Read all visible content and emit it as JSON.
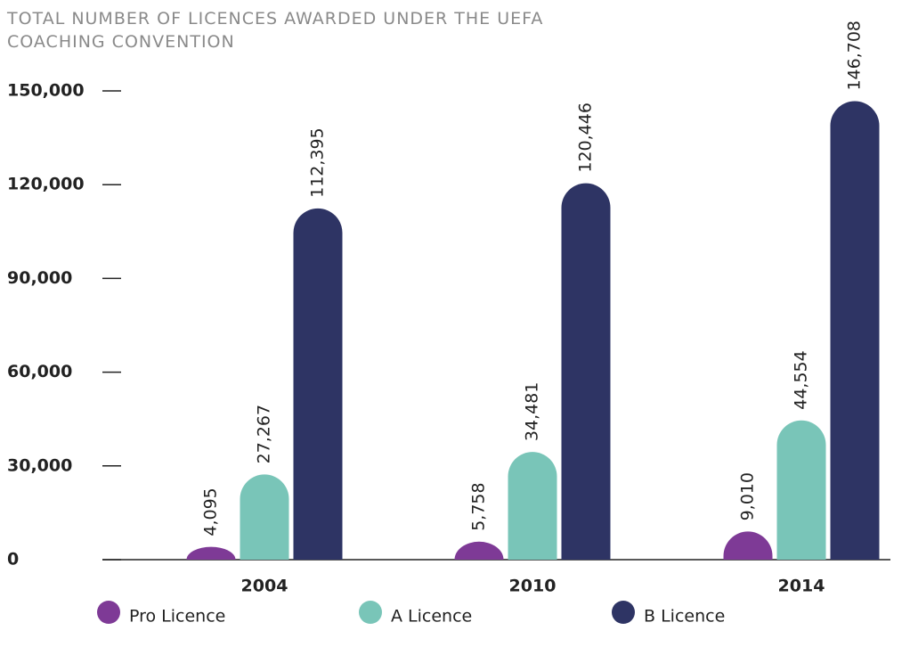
{
  "chart_data": {
    "type": "bar",
    "title": "TOTAL NUMBER OF LICENCES AWARDED UNDER THE UEFA COACHING CONVENTION",
    "categories": [
      "2004",
      "2010",
      "2014"
    ],
    "series": [
      {
        "name": "Pro Licence",
        "color": "#7e3a96",
        "values": [
          4095,
          5758,
          9010
        ],
        "value_labels": [
          "4,095",
          "5,758",
          "9,010"
        ]
      },
      {
        "name": "A Licence",
        "color": "#79c5b8",
        "values": [
          27267,
          34481,
          44554
        ],
        "value_labels": [
          "27,267",
          "34,481",
          "44,554"
        ]
      },
      {
        "name": "B Licence",
        "color": "#2e3464",
        "values": [
          112395,
          120446,
          146708
        ],
        "value_labels": [
          "112,395",
          "120,446",
          "146,708"
        ]
      }
    ],
    "ylim": [
      0,
      150000
    ],
    "yticks": [
      0,
      {
        "value": 30000,
        "label": "30,000"
      },
      {
        "value": 60000,
        "label": "60,000"
      },
      {
        "value": 90000,
        "label": "90,000"
      },
      {
        "value": 120000,
        "label": "120,000"
      },
      {
        "value": 150000,
        "label": "150,000"
      }
    ],
    "legend": "bottom"
  }
}
